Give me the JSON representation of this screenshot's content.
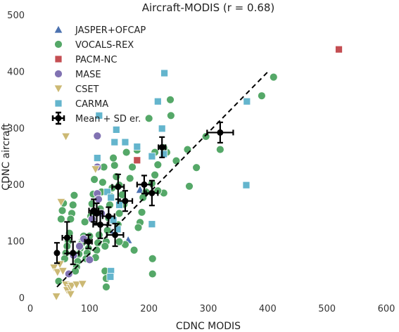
{
  "chart_data": {
    "type": "scatter",
    "title": "Aircraft-MODIS (r = 0.68)",
    "xlabel": "CDNC MODIS",
    "ylabel": "CDNC aircraft",
    "xlim": [
      0,
      600
    ],
    "ylim": [
      0,
      500
    ],
    "xticks": [
      "0",
      "100",
      "200",
      "300",
      "400",
      "500",
      "600"
    ],
    "yticks": [
      "0",
      "100",
      "200",
      "300",
      "400",
      "500"
    ],
    "legend_position": "top-left",
    "colors": {
      "JASPER+OFCAP": "#4c72b0",
      "VOCALS-REX": "#55a868",
      "PACM-NC": "#c44e52",
      "MASE": "#8172b2",
      "CSET": "#ccb974",
      "CARMA": "#64b5cd",
      "mean": "#000000"
    },
    "series": [
      {
        "name": "JASPER+OFCAP",
        "marker": "triangle-up",
        "points": [
          [
            185,
            192
          ],
          [
            165,
            103
          ],
          [
            135,
            120
          ]
        ]
      },
      {
        "name": "VOCALS-REX",
        "marker": "circle",
        "points": [
          [
            410,
            391
          ],
          [
            390,
            358
          ],
          [
            236,
            351
          ],
          [
            320,
            263
          ],
          [
            280,
            231
          ],
          [
            268,
            198
          ],
          [
            265,
            263
          ],
          [
            237,
            323
          ],
          [
            230,
            258
          ],
          [
            215,
            236
          ],
          [
            210,
            218
          ],
          [
            205,
            203
          ],
          [
            200,
            318
          ],
          [
            195,
            188
          ],
          [
            190,
            178
          ],
          [
            188,
            152
          ],
          [
            185,
            134
          ],
          [
            182,
            125
          ],
          [
            180,
            262
          ],
          [
            172,
            232
          ],
          [
            168,
            212
          ],
          [
            162,
            258
          ],
          [
            158,
            166
          ],
          [
            155,
            183
          ],
          [
            150,
            200
          ],
          [
            150,
            150
          ],
          [
            148,
            130
          ],
          [
            145,
            215
          ],
          [
            142,
            235
          ],
          [
            140,
            248
          ],
          [
            138,
            195
          ],
          [
            136,
            180
          ],
          [
            134,
            165
          ],
          [
            132,
            142
          ],
          [
            130,
            120
          ],
          [
            128,
            100
          ],
          [
            126,
            92
          ],
          [
            124,
            232
          ],
          [
            122,
            205
          ],
          [
            120,
            188
          ],
          [
            118,
            158
          ],
          [
            116,
            112
          ],
          [
            114,
            98
          ],
          [
            112,
            85
          ],
          [
            110,
            72
          ],
          [
            108,
            210
          ],
          [
            106,
            184
          ],
          [
            104,
            167
          ],
          [
            102,
            145
          ],
          [
            100,
            110
          ],
          [
            98,
            88
          ],
          [
            96,
            80
          ],
          [
            94,
            70
          ],
          [
            92,
            135
          ],
          [
            90,
            110
          ],
          [
            88,
            102
          ],
          [
            86,
            96
          ],
          [
            84,
            88
          ],
          [
            82,
            78
          ],
          [
            80,
            65
          ],
          [
            78,
            55
          ],
          [
            76,
            48
          ],
          [
            74,
            182
          ],
          [
            72,
            165
          ],
          [
            70,
            150
          ],
          [
            68,
            140
          ],
          [
            66,
            115
          ],
          [
            64,
            100
          ],
          [
            62,
            92
          ],
          [
            60,
            80
          ],
          [
            58,
            70
          ],
          [
            56,
            168
          ],
          [
            54,
            155
          ],
          [
            52,
            140
          ],
          [
            48,
            30
          ],
          [
            126,
            48
          ],
          [
            128,
            35
          ],
          [
            128,
            20
          ],
          [
            206,
            70
          ],
          [
            206,
            43
          ],
          [
            225,
            266
          ],
          [
            225,
            186
          ],
          [
            246,
            243
          ],
          [
            296,
            286
          ],
          [
            210,
            258
          ],
          [
            215,
            190
          ],
          [
            160,
            95
          ],
          [
            175,
            85
          ],
          [
            150,
            100
          ]
        ]
      },
      {
        "name": "PACM-NC",
        "marker": "square",
        "points": [
          [
            520,
            440
          ],
          [
            180,
            244
          ]
        ]
      },
      {
        "name": "MASE",
        "marker": "circle",
        "points": [
          [
            113,
            287
          ],
          [
            113,
            232
          ],
          [
            113,
            185
          ],
          [
            104,
            140
          ],
          [
            90,
            105
          ],
          [
            83,
            92
          ],
          [
            73,
            76
          ],
          [
            65,
            43
          ],
          [
            120,
            150
          ],
          [
            115,
            175
          ],
          [
            100,
            68
          ]
        ]
      },
      {
        "name": "CSET",
        "marker": "triangle-down",
        "points": [
          [
            60,
            286
          ],
          [
            110,
            228
          ],
          [
            52,
            170
          ],
          [
            40,
            54
          ],
          [
            46,
            46
          ],
          [
            60,
            24
          ],
          [
            62,
            14
          ],
          [
            68,
            18
          ],
          [
            68,
            7
          ],
          [
            70,
            22
          ],
          [
            78,
            24
          ],
          [
            88,
            25
          ],
          [
            44,
            3
          ],
          [
            50,
            60
          ],
          [
            55,
            48
          ]
        ]
      },
      {
        "name": "CARMA",
        "marker": "square",
        "points": [
          [
            226,
            398
          ],
          [
            215,
            348
          ],
          [
            365,
            348
          ],
          [
            364,
            200
          ],
          [
            222,
            300
          ],
          [
            180,
            268
          ],
          [
            160,
            276
          ],
          [
            145,
            298
          ],
          [
            142,
            276
          ],
          [
            116,
            323
          ],
          [
            113,
            248
          ],
          [
            130,
            188
          ],
          [
            136,
            178
          ],
          [
            205,
            251
          ],
          [
            205,
            131
          ],
          [
            150,
            165
          ],
          [
            147,
            122
          ],
          [
            140,
            138
          ],
          [
            136,
            48
          ],
          [
            135,
            38
          ],
          [
            225,
            255
          ]
        ]
      },
      {
        "name": "Mean + SD er.",
        "marker": "mean-errorbar",
        "points": [
          {
            "x": 45,
            "y": 80,
            "xerr": 0,
            "yerr": 18
          },
          {
            "x": 62,
            "y": 107,
            "xerr": 8,
            "yerr": 28
          },
          {
            "x": 72,
            "y": 80,
            "xerr": 10,
            "yerr": 20
          },
          {
            "x": 98,
            "y": 100,
            "xerr": 6,
            "yerr": 12
          },
          {
            "x": 107,
            "y": 155,
            "xerr": 8,
            "yerr": 20
          },
          {
            "x": 112,
            "y": 150,
            "xerr": 10,
            "yerr": 18
          },
          {
            "x": 118,
            "y": 130,
            "xerr": 12,
            "yerr": 24
          },
          {
            "x": 132,
            "y": 145,
            "xerr": 10,
            "yerr": 16
          },
          {
            "x": 143,
            "y": 112,
            "xerr": 14,
            "yerr": 20
          },
          {
            "x": 148,
            "y": 197,
            "xerr": 10,
            "yerr": 22
          },
          {
            "x": 160,
            "y": 172,
            "xerr": 12,
            "yerr": 18
          },
          {
            "x": 192,
            "y": 201,
            "xerr": 12,
            "yerr": 16
          },
          {
            "x": 205,
            "y": 186,
            "xerr": 10,
            "yerr": 22
          },
          {
            "x": 222,
            "y": 267,
            "xerr": 6,
            "yerr": 18
          },
          {
            "x": 320,
            "y": 293,
            "xerr": 22,
            "yerr": 18
          }
        ]
      }
    ],
    "fit_line": {
      "style": "dashed",
      "x": [
        45,
        400
      ],
      "y": [
        20,
        400
      ]
    }
  }
}
